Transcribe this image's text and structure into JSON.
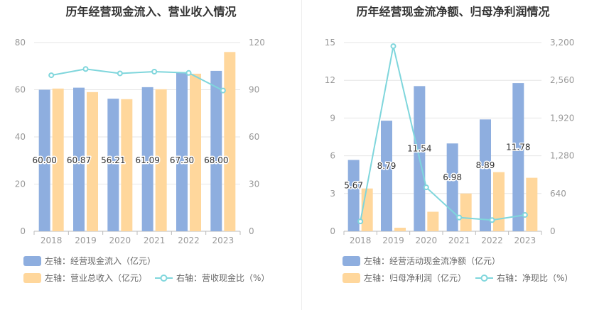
{
  "colors": {
    "blue": "#8eaedf",
    "orange": "#ffd79c",
    "teal": "#7fd6dc",
    "axis_text": "#999999",
    "grid": "#e6e6e6"
  },
  "left": {
    "title": "历年经营现金流入、营业收入情况",
    "legend": [
      {
        "label": "左轴：经营现金流入（亿元）",
        "icon": "bar-swatch"
      },
      {
        "label": "左轴：营业总收入（亿元）",
        "icon": "bar-swatch"
      },
      {
        "label": "右轴：营收现金比（%）",
        "icon": "line-marker"
      }
    ]
  },
  "right": {
    "title": "历年经营现金流净额、归母净利润情况",
    "legend": [
      {
        "label": "左轴：经营活动现金流净额（亿元）",
        "icon": "bar-swatch"
      },
      {
        "label": "左轴：归母净利润（亿元）",
        "icon": "bar-swatch"
      },
      {
        "label": "右轴：净现比（%）",
        "icon": "line-marker"
      }
    ]
  },
  "chart_data": [
    {
      "type": "bar",
      "title": "历年经营现金流入、营业收入情况",
      "categories": [
        "2018",
        "2019",
        "2020",
        "2021",
        "2022",
        "2023"
      ],
      "y_left": {
        "min": 0,
        "max": 80,
        "ticks": [
          "0",
          "20",
          "40",
          "60",
          "80"
        ]
      },
      "y_right": {
        "min": 0,
        "max": 120,
        "ticks": [
          "0",
          "30",
          "60",
          "90",
          "120"
        ]
      },
      "series": [
        {
          "name": "左轴：经营现金流入（亿元）",
          "axis": "left",
          "kind": "bar",
          "color": "#8eaedf",
          "values": [
            60.0,
            60.87,
            56.21,
            61.09,
            67.3,
            68.0
          ],
          "labels": [
            "60.00",
            "60.87",
            "56.21",
            "61.09",
            "67.30",
            "68.00"
          ]
        },
        {
          "name": "左轴：营业总收入（亿元）",
          "axis": "left",
          "kind": "bar",
          "color": "#ffd79c",
          "values": [
            60.5,
            59.0,
            56.0,
            60.2,
            66.8,
            76.0
          ]
        },
        {
          "name": "右轴：营收现金比（%）",
          "axis": "right",
          "kind": "line",
          "color": "#7fd6dc",
          "values": [
            99.2,
            103.2,
            100.4,
            101.5,
            100.7,
            89.5
          ]
        }
      ],
      "grid": true,
      "legend_position": "bottom"
    },
    {
      "type": "bar",
      "title": "历年经营现金流净额、归母净利润情况",
      "categories": [
        "2018",
        "2019",
        "2020",
        "2021",
        "2022",
        "2023"
      ],
      "y_left": {
        "min": 0,
        "max": 15,
        "ticks": [
          "0",
          "3",
          "6",
          "9",
          "12",
          "15"
        ]
      },
      "y_right": {
        "min": 0,
        "max": 3200,
        "ticks": [
          "0",
          "640",
          "1,280",
          "1,920",
          "2,560",
          "3,200"
        ]
      },
      "series": [
        {
          "name": "左轴：经营活动现金流净额（亿元）",
          "axis": "left",
          "kind": "bar",
          "color": "#8eaedf",
          "values": [
            5.67,
            8.79,
            11.54,
            6.98,
            8.89,
            11.78
          ],
          "labels": [
            "5.67",
            "8.79",
            "11.54",
            "6.98",
            "8.89",
            "11.78"
          ]
        },
        {
          "name": "左轴：归母净利润（亿元）",
          "axis": "left",
          "kind": "bar",
          "color": "#ffd79c",
          "values": [
            3.4,
            0.28,
            1.55,
            3.0,
            4.7,
            4.25
          ]
        },
        {
          "name": "右轴：净现比（%）",
          "axis": "right",
          "kind": "line",
          "color": "#7fd6dc",
          "values": [
            167,
            3139,
            744,
            233,
            189,
            277
          ]
        }
      ],
      "grid": true,
      "legend_position": "bottom"
    }
  ]
}
